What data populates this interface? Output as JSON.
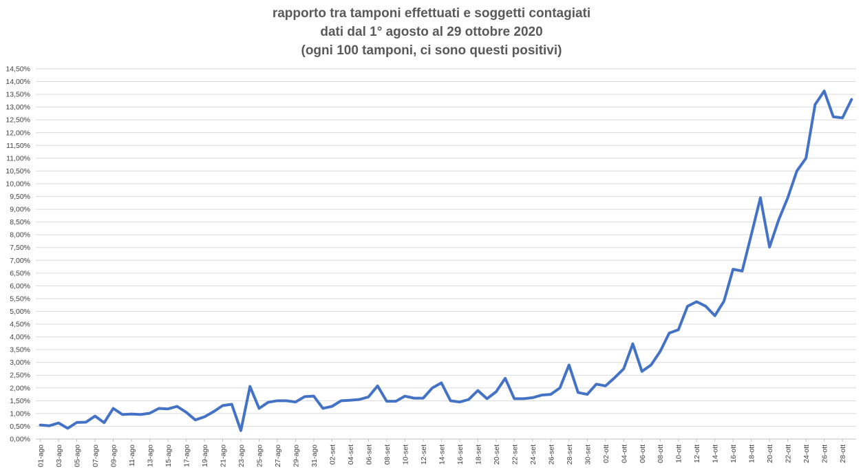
{
  "chart_data": {
    "type": "line",
    "title_lines": [
      "rapporto tra tamponi effettuati e soggetti contagiati",
      "dati dal 1° agosto al 29 ottobre 2020",
      "(ogni 100 tamponi, ci sono questi positivi)"
    ],
    "xlabel": "",
    "ylabel": "",
    "ylim": [
      0,
      0.145
    ],
    "y_ticks": [
      "0,00%",
      "0,50%",
      "1,00%",
      "1,50%",
      "2,00%",
      "2,50%",
      "3,00%",
      "3,50%",
      "4,00%",
      "4,50%",
      "5,00%",
      "5,50%",
      "6,00%",
      "6,50%",
      "7,00%",
      "7,50%",
      "8,00%",
      "8,50%",
      "9,00%",
      "9,50%",
      "10,00%",
      "10,50%",
      "11,00%",
      "11,50%",
      "12,00%",
      "12,50%",
      "13,00%",
      "13,50%",
      "14,00%",
      "14,50%"
    ],
    "x_tick_labels": [
      "01-ago",
      "03-ago",
      "05-ago",
      "07-ago",
      "09-ago",
      "11-ago",
      "13-ago",
      "15-ago",
      "17-ago",
      "19-ago",
      "21-ago",
      "23-ago",
      "25-ago",
      "27-ago",
      "29-ago",
      "31-ago",
      "02-set",
      "04-set",
      "06-set",
      "08-set",
      "10-set",
      "12-set",
      "14-set",
      "16-set",
      "18-set",
      "20-set",
      "22-set",
      "24-set",
      "26-set",
      "28-set",
      "30-set",
      "02-ott",
      "04-ott",
      "06-ott",
      "08-ott",
      "10-ott",
      "12-ott",
      "14-ott",
      "16-ott",
      "18-ott",
      "20-ott",
      "22-ott",
      "24-ott",
      "26-ott",
      "28-ott"
    ],
    "grid": true,
    "legend": "none",
    "line_color": "#4472C4",
    "grid_color": "#d9d9d9",
    "series": [
      {
        "values": [
          0.0055,
          0.0052,
          0.0063,
          0.0042,
          0.0065,
          0.0066,
          0.009,
          0.0064,
          0.012,
          0.0096,
          0.0098,
          0.0096,
          0.0101,
          0.012,
          0.0118,
          0.0128,
          0.0105,
          0.0075,
          0.0087,
          0.0107,
          0.0131,
          0.0136,
          0.0033,
          0.0206,
          0.012,
          0.0144,
          0.015,
          0.015,
          0.0145,
          0.0166,
          0.0168,
          0.012,
          0.0128,
          0.015,
          0.0152,
          0.0155,
          0.0165,
          0.0208,
          0.0148,
          0.0148,
          0.0168,
          0.016,
          0.016,
          0.02,
          0.022,
          0.015,
          0.0145,
          0.0155,
          0.019,
          0.0158,
          0.0185,
          0.0238,
          0.0158,
          0.0158,
          0.0162,
          0.0172,
          0.0175,
          0.02,
          0.029,
          0.0182,
          0.0175,
          0.0215,
          0.0208,
          0.024,
          0.0275,
          0.0373,
          0.0265,
          0.029,
          0.0343,
          0.0415,
          0.0428,
          0.052,
          0.0538,
          0.052,
          0.0483,
          0.054,
          0.0665,
          0.0658,
          0.08,
          0.0945,
          0.0752,
          0.0858,
          0.0945,
          0.105,
          0.11,
          0.131,
          0.1363,
          0.1262,
          0.1258,
          0.133
        ]
      }
    ]
  }
}
